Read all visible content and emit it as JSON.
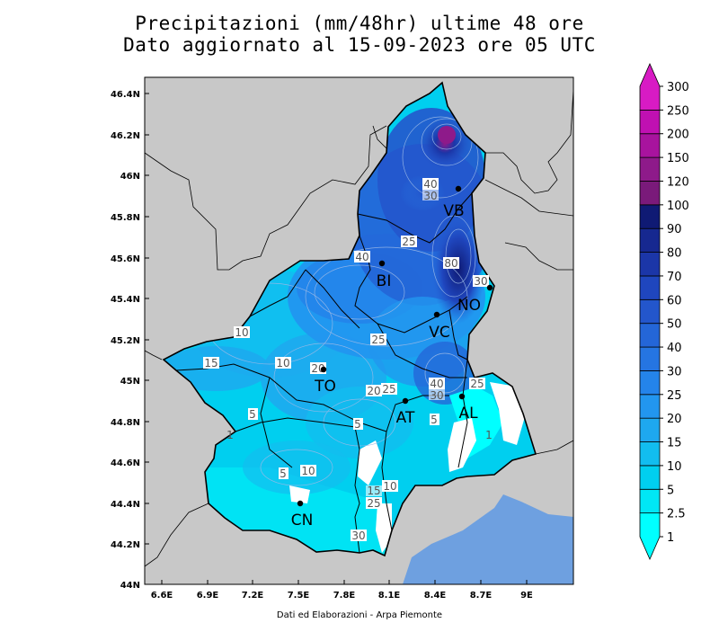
{
  "title": {
    "line1": "Precipitazioni (mm/48hr) ultime 48 ore",
    "line2": "Dato aggiornato al 15-09-2023 ore 05 UTC"
  },
  "credit": "Dati ed Elaborazioni - Arpa Piemonte",
  "axes": {
    "lat_labels": [
      "46.4N",
      "46.2N",
      "46N",
      "45.8N",
      "45.6N",
      "45.4N",
      "45.2N",
      "45N",
      "44.8N",
      "44.6N",
      "44.4N",
      "44.2N",
      "44N"
    ],
    "lon_labels": [
      "6.6E",
      "6.9E",
      "7.2E",
      "7.5E",
      "7.8E",
      "8.1E",
      "8.4E",
      "8.7E",
      "9E"
    ]
  },
  "colorbar": {
    "unit": "mm/48hr",
    "levels": [
      "1",
      "2.5",
      "5",
      "10",
      "15",
      "20",
      "25",
      "30",
      "40",
      "50",
      "60",
      "70",
      "80",
      "90",
      "100",
      "120",
      "150",
      "200",
      "250",
      "300"
    ],
    "colors": [
      "#00ffff",
      "#00e7f5",
      "#00cfef",
      "#12bdef",
      "#1ea8ef",
      "#2296ef",
      "#2484ea",
      "#2575e2",
      "#2466d8",
      "#2356cc",
      "#1f46be",
      "#1b36a8",
      "#162890",
      "#0f1a74",
      "#7a1a7a",
      "#8e1a8a",
      "#a8139e",
      "#c010b2",
      "#d81bc4"
    ]
  },
  "cities": [
    {
      "code": "VB"
    },
    {
      "code": "BI"
    },
    {
      "code": "NO"
    },
    {
      "code": "VC"
    },
    {
      "code": "TO"
    },
    {
      "code": "AT"
    },
    {
      "code": "AL"
    },
    {
      "code": "CN"
    }
  ],
  "contour_labels": [
    "40",
    "30",
    "25",
    "40",
    "80",
    "30",
    "10",
    "15",
    "10",
    "20",
    "25",
    "25",
    "20",
    "40",
    "30",
    "25",
    "5",
    "5",
    "5",
    "10",
    "5",
    "10",
    "15",
    "25",
    "30",
    "1",
    "1"
  ],
  "colors": {
    "background_land": "#c8c8c8",
    "sea": "#6ea0e0"
  }
}
